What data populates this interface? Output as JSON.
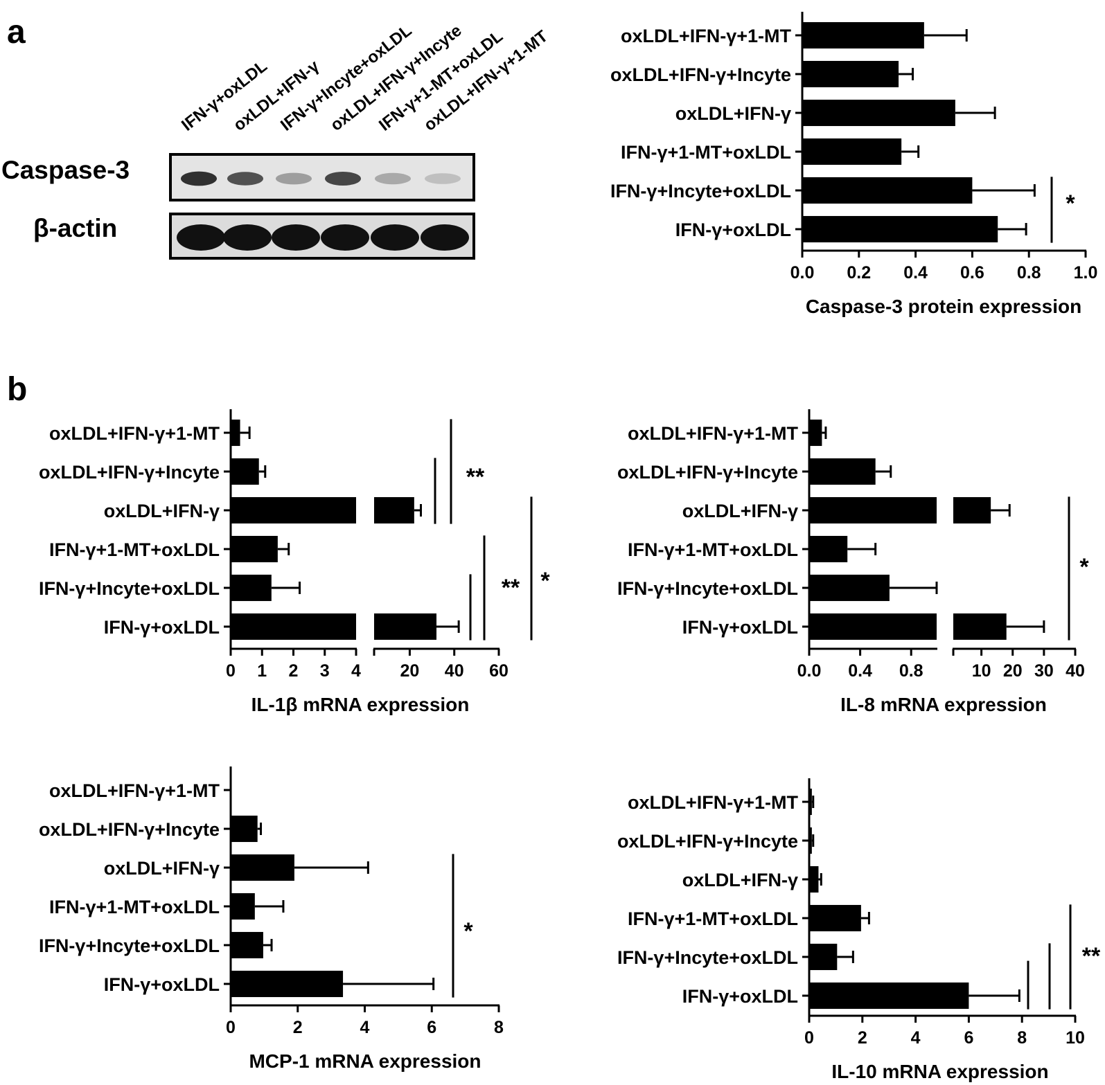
{
  "panel_labels": [
    "a",
    "b"
  ],
  "western_blot": {
    "lanes": [
      "IFN-γ+oxLDL",
      "oxLDL+IFN-γ",
      "IFN-γ+Incyte+oxLDL",
      "oxLDL+IFN-γ+Incyte",
      "IFN-γ+1-MT+oxLDL",
      "oxLDL+IFN-γ+1-MT"
    ],
    "rows": [
      "Caspase-3",
      "β-actin"
    ],
    "caspase_band_intensity": [
      0.85,
      0.7,
      0.35,
      0.75,
      0.3,
      0.2
    ]
  },
  "chart_data": [
    {
      "id": "caspase",
      "type": "bar",
      "orientation": "horizontal",
      "categories": [
        "oxLDL+IFN-γ+1-MT",
        "oxLDL+IFN-γ+Incyte",
        "oxLDL+IFN-γ",
        "IFN-γ+1-MT+oxLDL",
        "IFN-γ+Incyte+oxLDL",
        "IFN-γ+oxLDL"
      ],
      "values": [
        0.43,
        0.34,
        0.54,
        0.35,
        0.6,
        0.69
      ],
      "errors": [
        0.15,
        0.05,
        0.14,
        0.06,
        0.22,
        0.1
      ],
      "xlabel": "Caspase-3 protein expression",
      "xlim": [
        0,
        1.0
      ],
      "ticks": [
        "0.0",
        "0.2",
        "0.4",
        "0.6",
        "0.8",
        "1.0"
      ],
      "significance": [
        {
          "label": "*",
          "between": [
            "IFN-γ+Incyte+oxLDL",
            "IFN-γ+oxLDL"
          ]
        }
      ]
    },
    {
      "id": "il1b",
      "type": "bar",
      "orientation": "horizontal",
      "broken_axis": true,
      "categories": [
        "oxLDL+IFN-γ+1-MT",
        "oxLDL+IFN-γ+Incyte",
        "oxLDL+IFN-γ",
        "IFN-γ+1-MT+oxLDL",
        "IFN-γ+Incyte+oxLDL",
        "IFN-γ+oxLDL"
      ],
      "values": [
        0.3,
        0.9,
        22,
        1.5,
        1.3,
        32
      ],
      "errors": [
        0.3,
        0.2,
        3,
        0.35,
        0.9,
        10
      ],
      "xlabel": "IL-1β mRNA expression",
      "segments": [
        {
          "range": [
            0,
            4
          ],
          "ticks": [
            "0",
            "1",
            "2",
            "3",
            "4"
          ]
        },
        {
          "range": [
            4,
            60
          ],
          "ticks": [
            "20",
            "40",
            "60"
          ]
        }
      ],
      "significance": [
        {
          "label": "**",
          "between": [
            "oxLDL+IFN-γ+1-MT",
            "oxLDL+IFN-γ"
          ]
        },
        {
          "label": "**",
          "between": [
            "IFN-γ+1-MT+oxLDL",
            "IFN-γ+oxLDL"
          ]
        },
        {
          "label": "*",
          "between": [
            "oxLDL+IFN-γ",
            "IFN-γ+oxLDL"
          ]
        }
      ]
    },
    {
      "id": "il8",
      "type": "bar",
      "orientation": "horizontal",
      "broken_axis": true,
      "categories": [
        "oxLDL+IFN-γ+1-MT",
        "oxLDL+IFN-γ+Incyte",
        "oxLDL+IFN-γ",
        "IFN-γ+1-MT+oxLDL",
        "IFN-γ+Incyte+oxLDL",
        "IFN-γ+oxLDL"
      ],
      "values": [
        0.1,
        0.52,
        13,
        0.3,
        0.63,
        18
      ],
      "errors": [
        0.03,
        0.12,
        6,
        0.22,
        0.37,
        12
      ],
      "xlabel": "IL-8 mRNA expression",
      "segments": [
        {
          "range": [
            0,
            1.0
          ],
          "ticks": [
            "0.0",
            "0.4",
            "0.8"
          ]
        },
        {
          "range": [
            1,
            40
          ],
          "ticks": [
            "10",
            "20",
            "30",
            "40"
          ]
        }
      ],
      "significance": [
        {
          "label": "*",
          "between": [
            "oxLDL+IFN-γ",
            "IFN-γ+oxLDL"
          ]
        }
      ]
    },
    {
      "id": "mcp1",
      "type": "bar",
      "orientation": "horizontal",
      "categories": [
        "oxLDL+IFN-γ+1-MT",
        "oxLDL+IFN-γ+Incyte",
        "oxLDL+IFN-γ",
        "IFN-γ+1-MT+oxLDL",
        "IFN-γ+Incyte+oxLDL",
        "IFN-γ+oxLDL"
      ],
      "values": [
        0.02,
        0.8,
        1.9,
        0.72,
        0.97,
        3.35
      ],
      "errors": [
        0.0,
        0.1,
        2.2,
        0.85,
        0.25,
        2.7
      ],
      "xlabel": "MCP-1 mRNA expression",
      "xlim": [
        0,
        8
      ],
      "ticks": [
        "0",
        "2",
        "4",
        "6",
        "8"
      ],
      "significance": [
        {
          "label": "*",
          "between": [
            "oxLDL+IFN-γ",
            "IFN-γ+oxLDL"
          ]
        }
      ]
    },
    {
      "id": "il10",
      "type": "bar",
      "orientation": "horizontal",
      "categories": [
        "oxLDL+IFN-γ+1-MT",
        "oxLDL+IFN-γ+Incyte",
        "oxLDL+IFN-γ",
        "IFN-γ+1-MT+oxLDL",
        "IFN-γ+Incyte+oxLDL",
        "IFN-γ+oxLDL"
      ],
      "values": [
        0.1,
        0.1,
        0.35,
        1.95,
        1.05,
        6.0
      ],
      "errors": [
        0.05,
        0.05,
        0.1,
        0.3,
        0.6,
        1.9
      ],
      "xlabel": "IL-10 mRNA expression",
      "xlim": [
        0,
        10
      ],
      "ticks": [
        "0",
        "2",
        "4",
        "6",
        "8",
        "10"
      ],
      "significance": [
        {
          "label": "**",
          "between": [
            "IFN-γ+1-MT+oxLDL",
            "IFN-γ+oxLDL"
          ]
        }
      ]
    }
  ]
}
